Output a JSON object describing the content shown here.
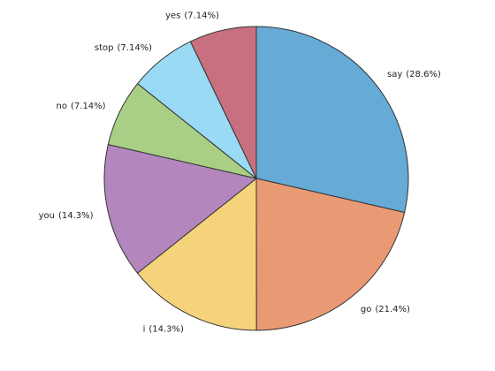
{
  "chart_data": {
    "type": "pie",
    "categories": [
      "say",
      "go",
      "i",
      "you",
      "no",
      "stop",
      "yes"
    ],
    "values": [
      28.6,
      21.4,
      14.3,
      14.3,
      7.14,
      7.14,
      7.14
    ],
    "value_labels": [
      "(28.6%)",
      "(21.4%)",
      "(14.3%)",
      "(14.3%)",
      "(7.14%)",
      "(7.14%)",
      "(7.14%)"
    ],
    "colors": [
      "#66aad6",
      "#e99a75",
      "#f5d37a",
      "#b386bd",
      "#a9cf85",
      "#9adaf5",
      "#c97080"
    ]
  }
}
